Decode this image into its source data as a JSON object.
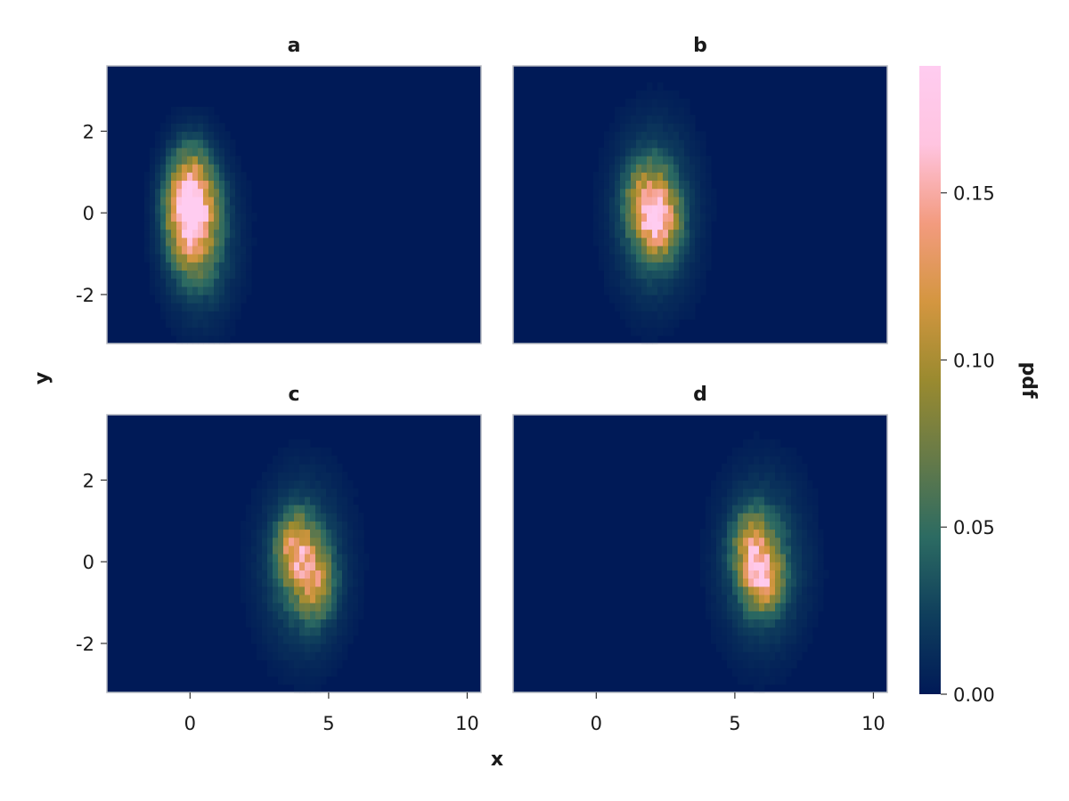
{
  "chart_data": {
    "type": "heatmap",
    "title": "",
    "xlabel": "x",
    "ylabel": "y",
    "xlim": [
      -3,
      10.5
    ],
    "ylim": [
      -3.2,
      3.6
    ],
    "x_ticks": [
      0,
      5,
      10
    ],
    "x_tick_labels": [
      "0",
      "5",
      "10"
    ],
    "y_ticks": [
      -2,
      0,
      2
    ],
    "y_tick_labels": [
      "-2",
      "0",
      "2"
    ],
    "grid": false,
    "panels": [
      {
        "title": "a",
        "peaks": [
          {
            "x": 0.0,
            "y": 0.15,
            "sx": 0.55,
            "sy": 0.85,
            "amp": 0.19
          },
          {
            "x": 0.4,
            "y": -0.6,
            "sx": 0.8,
            "sy": 1.2,
            "amp": 0.05
          }
        ]
      },
      {
        "title": "b",
        "peaks": [
          {
            "x": 2.3,
            "y": -0.2,
            "sx": 0.45,
            "sy": 0.55,
            "amp": 0.1
          },
          {
            "x": 1.8,
            "y": 0.3,
            "sx": 0.5,
            "sy": 0.6,
            "amp": 0.08
          },
          {
            "x": 2.1,
            "y": 0.0,
            "sx": 0.9,
            "sy": 1.3,
            "amp": 0.055
          }
        ]
      },
      {
        "title": "c",
        "peaks": [
          {
            "x": 3.8,
            "y": 0.3,
            "sx": 0.45,
            "sy": 0.55,
            "amp": 0.1
          },
          {
            "x": 4.5,
            "y": -0.5,
            "sx": 0.45,
            "sy": 0.55,
            "amp": 0.08
          },
          {
            "x": 4.1,
            "y": -0.1,
            "sx": 0.95,
            "sy": 1.3,
            "amp": 0.05
          }
        ]
      },
      {
        "title": "d",
        "peaks": [
          {
            "x": 6.0,
            "y": -0.4,
            "sx": 0.45,
            "sy": 0.5,
            "amp": 0.11
          },
          {
            "x": 5.6,
            "y": 0.4,
            "sx": 0.45,
            "sy": 0.55,
            "amp": 0.08
          },
          {
            "x": 6.0,
            "y": 0.0,
            "sx": 0.95,
            "sy": 1.3,
            "amp": 0.05
          }
        ]
      }
    ],
    "colorbar": {
      "label": "pdf",
      "range": [
        0,
        0.188
      ],
      "ticks": [
        0,
        0.05,
        0.1,
        0.15
      ],
      "tick_labels": [
        "0.00",
        "0.05",
        "0.10",
        "0.15"
      ],
      "colors": [
        "#001a57",
        "#0f3e5c",
        "#2c6b62",
        "#667a48",
        "#9a8a2f",
        "#d49640",
        "#f39b7f",
        "#ffc4e0",
        "#ffccf0"
      ]
    }
  }
}
